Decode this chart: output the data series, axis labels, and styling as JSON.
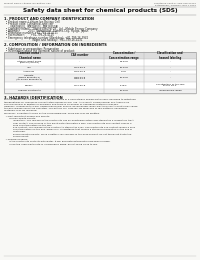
{
  "bg_color": "#f8f8f5",
  "header_left": "Product Name: Lithium Ion Battery Cell",
  "header_right1": "Substance Control: SDS-048-00010",
  "header_right2": "Established / Revision: Dec.7.2016",
  "title": "Safety data sheet for chemical products (SDS)",
  "section1_title": "1. PRODUCT AND COMPANY IDENTIFICATION",
  "section1_lines": [
    "  • Product name: Lithium Ion Battery Cell",
    "  • Product code: Cylindrical-type cell",
    "       (INR18650L, INR18650L, INR18650A)",
    "  • Company name:    Sanyo Electric Co., Ltd., Mobile Energy Company",
    "  • Address:          2001  Kamitsuboi, Sumoto-City, Hyogo, Japan",
    "  • Telephone number: +81-799-26-4111",
    "  • Fax number:       +81-799-26-4125",
    "  • Emergency telephone number (Weekday): +81-799-26-3942",
    "                                (Night and holiday): +81-799-26-4131"
  ],
  "section2_title": "2. COMPOSITION / INFORMATION ON INGREDIENTS",
  "section2_intro": "  • Substance or preparation: Preparation",
  "section2_sub": "  • Information about the chemical nature of product:",
  "col_headers": [
    "Common name /\nChemical name",
    "CAS number",
    "Concentration /\nConcentration range",
    "Classification and\nhazard labeling"
  ],
  "table_rows": [
    [
      "Lithium cobalt oxide\n(LiMnO2/LiCoO2)",
      "-",
      "30-60%",
      "-"
    ],
    [
      "Iron",
      "7439-89-6",
      "15-30%",
      "-"
    ],
    [
      "Aluminum",
      "7429-90-5",
      "2-5%",
      "-"
    ],
    [
      "Graphite\n(Mined graphite-1)\n(Air-blown graphite-1)",
      "7782-42-5\n7782-44-2",
      "10-30%",
      "-"
    ],
    [
      "Copper",
      "7440-50-8",
      "5-15%",
      "Sensitization of the skin\ngroup No.2"
    ],
    [
      "Organic electrolyte",
      "-",
      "10-20%",
      "Inflammable liquid"
    ]
  ],
  "section3_title": "3. HAZARDS IDENTIFICATION",
  "section3_text": [
    "For the battery cell, chemical materials are stored in a hermetically sealed metal case, designed to withstand",
    "temperatures for processes-concentration during normal use. As a result, during normal use, there is no",
    "physical danger of ignition or explosion and there is no danger of hazardous materials leakage.",
    "However, if exposed to a fire, added mechanical shocks, decomposed, when electrical short-circuits may cause",
    "the gas release cannot be operated. The battery cell case will be breached of fire-patterns, hazardous",
    "materials may be released.",
    "Moreover, if heated strongly by the surrounding fire, some gas may be emitted.",
    "",
    "  • Most important hazard and effects:",
    "       Human health effects:",
    "            Inhalation: The release of the electrolyte has an anesthesia action and stimulates a respiratory tract.",
    "            Skin contact: The release of the electrolyte stimulates a skin. The electrolyte skin contact causes a",
    "            sore and stimulation on the skin.",
    "            Eye contact: The release of the electrolyte stimulates eyes. The electrolyte eye contact causes a sore",
    "            and stimulation on the eye. Especially, a substance that causes a strong inflammation of the eye is",
    "            contained.",
    "            Environmental effects: Since a battery cell remains in the environment, do not throw out it into the",
    "            environment.",
    "",
    "  • Specific hazards:",
    "       If the electrolyte contacts with water, it will generate detrimental hydrogen fluoride.",
    "       Since the used electrolyte is inflammable liquid, do not bring close to fire."
  ]
}
